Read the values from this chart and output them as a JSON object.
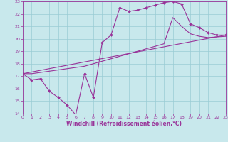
{
  "xlabel": "Windchill (Refroidissement éolien,°C)",
  "xlim": [
    0,
    23
  ],
  "ylim": [
    14,
    23
  ],
  "xticks": [
    0,
    1,
    2,
    3,
    4,
    5,
    6,
    7,
    8,
    9,
    10,
    11,
    12,
    13,
    14,
    15,
    16,
    17,
    18,
    19,
    20,
    21,
    22,
    23
  ],
  "yticks": [
    14,
    15,
    16,
    17,
    18,
    19,
    20,
    21,
    22,
    23
  ],
  "bg_color": "#c8e8ec",
  "grid_color": "#99ccd4",
  "line_color": "#993399",
  "line1_x": [
    0,
    1,
    2,
    3,
    4,
    5,
    6,
    7,
    8,
    9,
    10,
    11,
    12,
    13,
    14,
    15,
    16,
    17,
    18,
    19,
    20,
    21,
    22,
    23
  ],
  "line1_y": [
    17.2,
    16.7,
    16.8,
    15.8,
    15.3,
    14.7,
    13.9,
    17.2,
    15.3,
    19.7,
    20.3,
    22.5,
    22.2,
    22.3,
    22.5,
    22.7,
    22.9,
    23.0,
    22.8,
    21.2,
    20.9,
    20.5,
    20.3,
    20.3
  ],
  "line2_x": [
    0,
    1,
    2,
    3,
    4,
    5,
    6,
    7,
    8,
    9,
    10,
    11,
    12,
    13,
    14,
    15,
    16,
    17,
    18,
    19,
    20,
    21,
    22,
    23
  ],
  "line2_y": [
    17.2,
    17.2,
    17.3,
    17.4,
    17.5,
    17.6,
    17.7,
    17.8,
    18.0,
    18.2,
    18.4,
    18.6,
    18.8,
    19.0,
    19.2,
    19.4,
    19.6,
    21.7,
    21.0,
    20.4,
    20.2,
    20.1,
    20.15,
    20.2
  ],
  "line3_x": [
    0,
    23
  ],
  "line3_y": [
    17.2,
    20.3
  ],
  "marker": "D",
  "markersize": 2.0,
  "linewidth": 0.8,
  "tick_fontsize": 4.5,
  "label_fontsize": 5.5
}
